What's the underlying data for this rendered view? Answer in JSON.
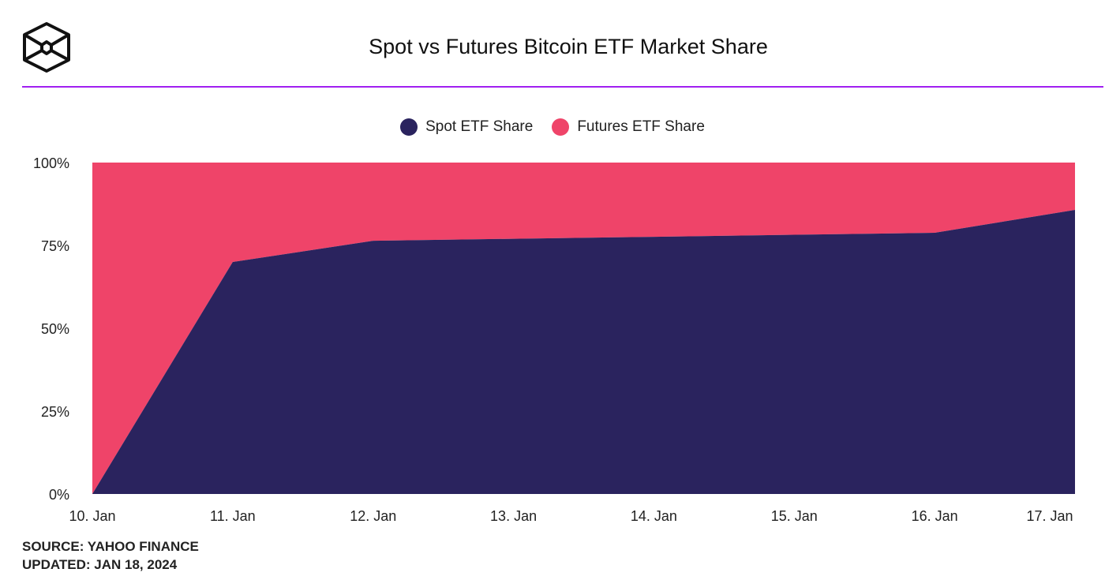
{
  "chart_data": {
    "type": "area",
    "stacked": "percent",
    "title": "Spot vs Futures Bitcoin ETF Market Share",
    "categories": [
      "10. Jan",
      "11. Jan",
      "12. Jan",
      "13. Jan",
      "14. Jan",
      "15. Jan",
      "16. Jan",
      "17. Jan"
    ],
    "series": [
      {
        "name": "Spot ETF Share",
        "color": "#2a235e",
        "values": [
          0,
          70,
          76.4,
          77.0,
          77.6,
          78.2,
          78.8,
          85.7
        ]
      },
      {
        "name": "Futures ETF Share",
        "color": "#ef4469",
        "values": [
          100,
          30,
          23.6,
          23.0,
          22.4,
          21.8,
          21.2,
          14.3
        ]
      }
    ],
    "yticks": [
      "0%",
      "25%",
      "50%",
      "75%",
      "100%"
    ],
    "ylim": [
      0,
      100
    ],
    "legend": "top-center",
    "grid": false
  },
  "footer": {
    "source": "SOURCE: YAHOO FINANCE",
    "updated": "UPDATED: JAN 18, 2024"
  },
  "accent_color": "#a020f0"
}
